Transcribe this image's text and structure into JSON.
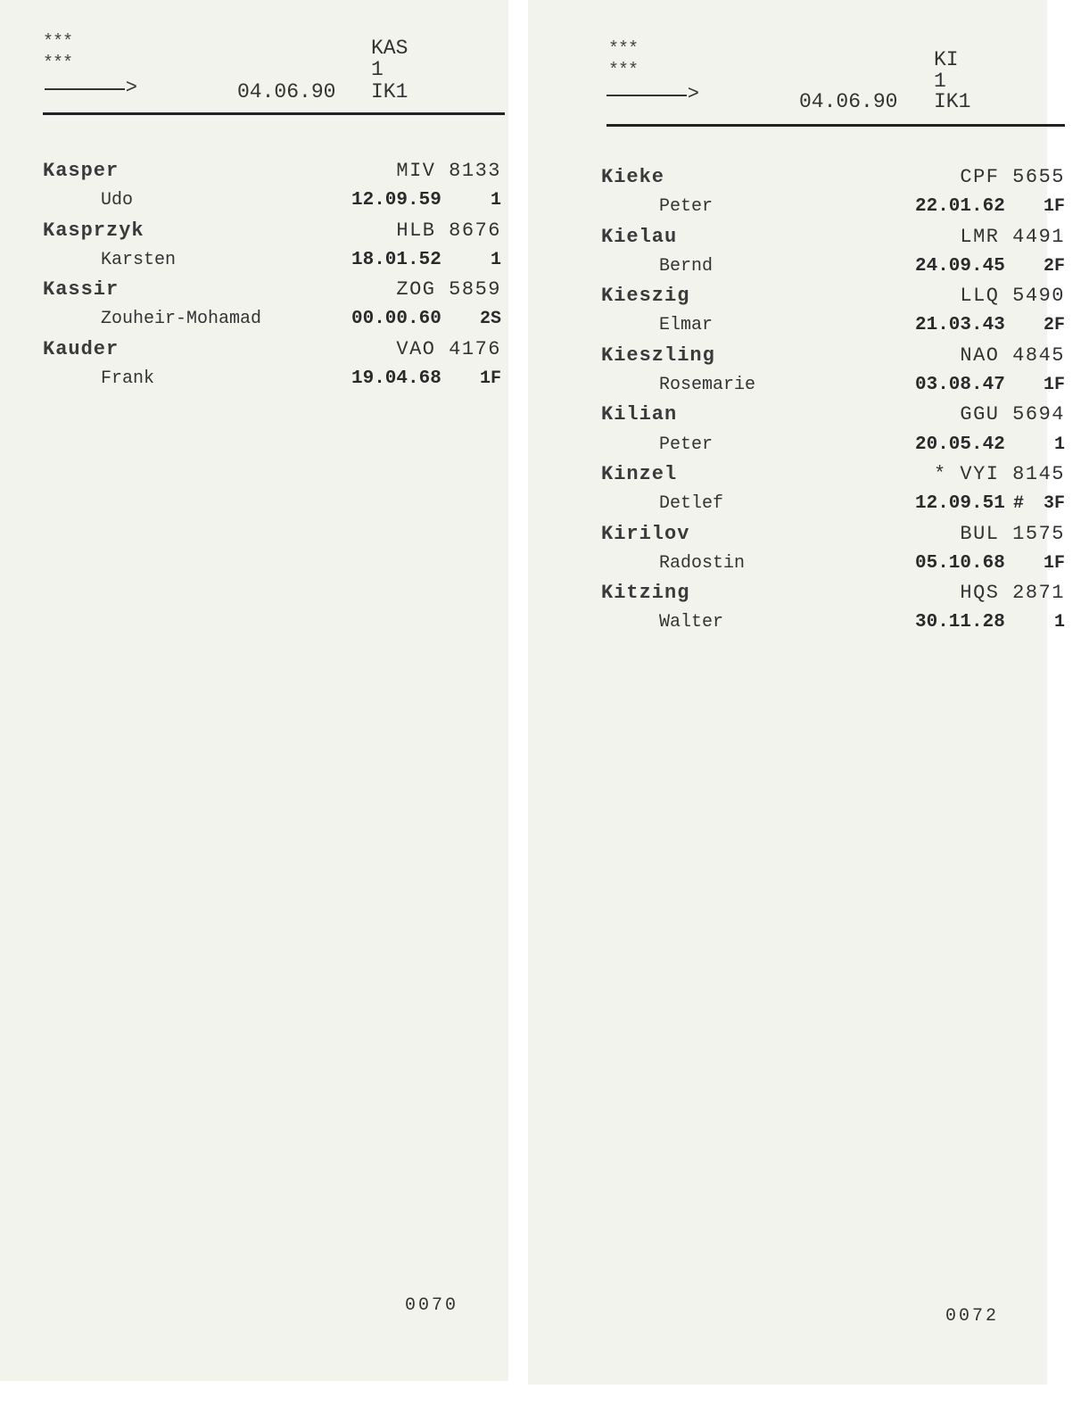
{
  "sheets": [
    {
      "stars": [
        "***",
        "***"
      ],
      "code": "KAS",
      "page": "1",
      "date": "04.06.90",
      "unit": "IK1",
      "footer": "0070",
      "entries": [
        {
          "surname": "Kasper",
          "first": "Udo",
          "code": "MIV 8133",
          "date": "12.09.59",
          "mark": "",
          "cls": "1"
        },
        {
          "surname": "Kasprzyk",
          "first": "Karsten",
          "code": "HLB 8676",
          "date": "18.01.52",
          "mark": "",
          "cls": "1"
        },
        {
          "surname": "Kassir",
          "first": "Zouheir-Mohamad",
          "code": "ZOG 5859",
          "date": "00.00.60",
          "mark": "",
          "cls": "2S"
        },
        {
          "surname": "Kauder",
          "first": "Frank",
          "code": "VAO 4176",
          "date": "19.04.68",
          "mark": "",
          "cls": "1F"
        }
      ]
    },
    {
      "stars": [
        "***",
        "***"
      ],
      "code": "KI",
      "page": "1",
      "date": "04.06.90",
      "unit": "IK1",
      "footer": "0072",
      "entries": [
        {
          "surname": "Kieke",
          "first": "Peter",
          "code": "CPF 5655",
          "date": "22.01.62",
          "mark": "",
          "cls": "1F"
        },
        {
          "surname": "Kielau",
          "first": "Bernd",
          "code": "LMR 4491",
          "date": "24.09.45",
          "mark": "",
          "cls": "2F"
        },
        {
          "surname": "Kieszig",
          "first": "Elmar",
          "code": "LLQ 5490",
          "date": "21.03.43",
          "mark": "",
          "cls": "2F"
        },
        {
          "surname": "Kieszling",
          "first": "Rosemarie",
          "code": "NAO 4845",
          "date": "03.08.47",
          "mark": "",
          "cls": "1F"
        },
        {
          "surname": "Kilian",
          "first": "Peter",
          "code": "GGU 5694",
          "date": "20.05.42",
          "mark": "",
          "cls": "1"
        },
        {
          "surname": "Kinzel",
          "first": "Detlef",
          "code": "* VYI 8145",
          "date": "12.09.51",
          "mark": "#",
          "cls": "3F"
        },
        {
          "surname": "Kirilov",
          "first": "Radostin",
          "code": "BUL 1575",
          "date": "05.10.68",
          "mark": "",
          "cls": "1F"
        },
        {
          "surname": "Kitzing",
          "first": "Walter",
          "code": "HQS 2871",
          "date": "30.11.28",
          "mark": "",
          "cls": "1"
        }
      ]
    }
  ]
}
